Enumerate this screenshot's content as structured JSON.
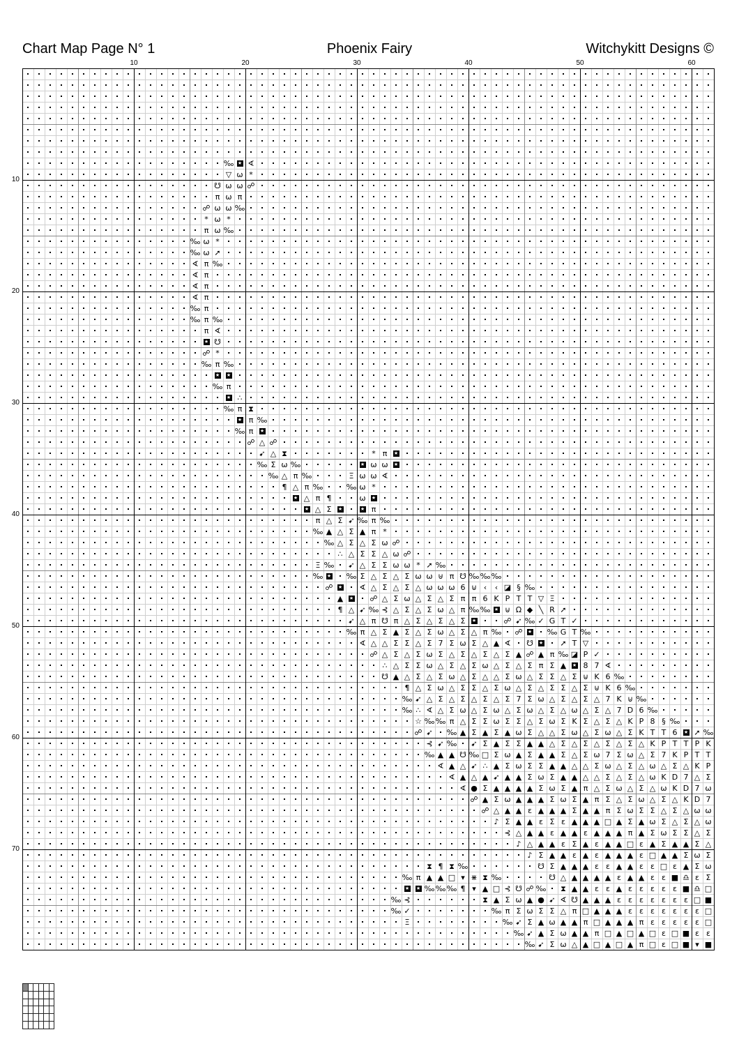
{
  "header": {
    "left": "Chart Map Page N° 1",
    "center": "Phoenix Fairy",
    "right": "Witchykitt Designs ©"
  },
  "column_numbers": [
    "10",
    "20",
    "30",
    "40",
    "50",
    "60"
  ],
  "row_numbers": [
    "10",
    "20",
    "30",
    "40",
    "50",
    "60",
    "70"
  ],
  "chart_data": {
    "type": "table",
    "columns": 62,
    "rows": 79,
    "empty_symbol": ".",
    "segments": [
      {
        "row": 9,
        "col": 19,
        "s": "‰⧈∢"
      },
      {
        "row": 10,
        "col": 19,
        "s": "▽ω*"
      },
      {
        "row": 11,
        "col": 18,
        "s": "☋ωω☍"
      },
      {
        "row": 12,
        "col": 18,
        "s": "πωπ"
      },
      {
        "row": 13,
        "col": 17,
        "s": "☍ωω‰"
      },
      {
        "row": 14,
        "col": 17,
        "s": "*ω*"
      },
      {
        "row": 15,
        "col": 17,
        "s": "πω‰"
      },
      {
        "row": 16,
        "col": 16,
        "s": "‰ω*"
      },
      {
        "row": 17,
        "col": 16,
        "s": "‰ω➚"
      },
      {
        "row": 18,
        "col": 16,
        "s": "∢π‰"
      },
      {
        "row": 19,
        "col": 16,
        "s": "∢π"
      },
      {
        "row": 20,
        "col": 16,
        "s": "∢π"
      },
      {
        "row": 21,
        "col": 16,
        "s": "∢π"
      },
      {
        "row": 22,
        "col": 16,
        "s": "‰π"
      },
      {
        "row": 23,
        "col": 16,
        "s": "‰π‰"
      },
      {
        "row": 24,
        "col": 17,
        "s": "π∢"
      },
      {
        "row": 25,
        "col": 17,
        "s": "⧈☋"
      },
      {
        "row": 26,
        "col": 17,
        "s": "☍*"
      },
      {
        "row": 27,
        "col": 17,
        "s": "‰π‰"
      },
      {
        "row": 28,
        "col": 18,
        "s": "⧈⧈"
      },
      {
        "row": 29,
        "col": 18,
        "s": "‰π"
      },
      {
        "row": 30,
        "col": 19,
        "s": "⧈∴"
      },
      {
        "row": 31,
        "col": 19,
        "s": "‰π⧗"
      },
      {
        "row": 32,
        "col": 20,
        "s": "⧈π‰"
      },
      {
        "row": 33,
        "col": 20,
        "s": "‰π⧈"
      },
      {
        "row": 34,
        "col": 21,
        "s": "☍△☍"
      },
      {
        "row": 35,
        "col": 22,
        "s": "➹△⧗"
      },
      {
        "row": 35,
        "col": 32,
        "s": "*π⧈"
      },
      {
        "row": 36,
        "col": 22,
        "s": "‰Σω‰"
      },
      {
        "row": 36,
        "col": 31,
        "s": "⧈ωω⧈"
      },
      {
        "row": 37,
        "col": 23,
        "s": "‰△π‰"
      },
      {
        "row": 37,
        "col": 30,
        "s": "Ξωω∢"
      },
      {
        "row": 38,
        "col": 24,
        "s": "¶△π‰"
      },
      {
        "row": 38,
        "col": 30,
        "s": "‰ω*"
      },
      {
        "row": 39,
        "col": 25,
        "s": "⧈△π¶"
      },
      {
        "row": 39,
        "col": 31,
        "s": "ω⧈"
      },
      {
        "row": 40,
        "col": 26,
        "s": "⧈△Σ⧈.⧈π"
      },
      {
        "row": 41,
        "col": 27,
        "s": "π△Σ➹‰π‰"
      },
      {
        "row": 42,
        "col": 27,
        "s": "‰▲△Σ▲π*"
      },
      {
        "row": 43,
        "col": 28,
        "s": "‰△Σ△Σω☍"
      },
      {
        "row": 44,
        "col": 29,
        "s": "∴△ΣΣ△ω☍"
      },
      {
        "row": 45,
        "col": 27,
        "s": "Ξ‰.➹△ΣΣωω*➚‰"
      },
      {
        "row": 46,
        "col": 27,
        "s": "‰⧈.‰Σ△Σ△Σωω⊎π☋‰‰‰"
      },
      {
        "row": 47,
        "col": 28,
        "s": "☍⧈.∢△Σ△Σ△ωωω6⊍‹‹◪§‰"
      },
      {
        "row": 48,
        "col": 29,
        "s": "▲⧈.☍△Σω△Σ△Σππ6KPTT▽Ξ"
      },
      {
        "row": 49,
        "col": 29,
        "s": "¶△➹‰⊰△Σ△Σω△π‰‰⧈⊍Ω◆╲R➚"
      },
      {
        "row": 50,
        "col": 30,
        "s": "➹△π☋π△Σ△Σ△Σ⧈..☍➹‰✓GT✓"
      },
      {
        "row": 51,
        "col": 30,
        "s": "‰π△Σ▲Σ△Σω△Σ△π‰.☍⧈.‰GT‰"
      },
      {
        "row": 52,
        "col": 31,
        "s": "∢△△ΣΣ△Σ7ΣωΣ△▲∢.☋⧈.➚T▽"
      },
      {
        "row": 53,
        "col": 32,
        "s": "☍△Σ△ΣωΣ△Σ△Σ△Σ▲☍▲π‰◪P✓"
      },
      {
        "row": 54,
        "col": 33,
        "s": "∴△ΣΣω△Σ△Σω△Σ△ΣπΣ▲⧈87∢"
      },
      {
        "row": 55,
        "col": 33,
        "s": "☋▲△Σ△Σω△Σ△△Σω△ΣΣ△Σ⊍K6‰"
      },
      {
        "row": 56,
        "col": 35,
        "s": "¶△Σω△ΣΣ△Σω△Σ△ΣΣ△Σ⊍K6‰"
      },
      {
        "row": 57,
        "col": 35,
        "s": "‰➹△Σ△Σ△Σ△Σ7Σω△Σ△Σ△7K⊍‰"
      },
      {
        "row": 58,
        "col": 35,
        "s": "‰∴∢△Σω△Σω△Σω△Σ△ω△Σ△7D6‰"
      },
      {
        "row": 59,
        "col": 36,
        "s": "☆‰‰π△ΣΣωΣΣ△ΣωΣKΣ△Σ△KP8§‰"
      },
      {
        "row": 60,
        "col": 36,
        "s": "☍➹.‰▲Σ▲Σ▲ωΣ△△Σω△Σω△ΣKTT6⧈➚‰"
      },
      {
        "row": 61,
        "col": 37,
        "s": "⊰➹‰.➹Σ▲ΣΣ▲▲△Σ△Σ△Σ△Σ△KPTTPK"
      },
      {
        "row": 62,
        "col": 37,
        "s": "‰▲▲☋‰□Σω▲Σ▲▲Σ△Σω7Σω△Σ7KPTT"
      },
      {
        "row": 63,
        "col": 38,
        "s": "∢▲△➹∴▲ΣωΣΣ▲▲△△Σω△Σ△ω△Σ△KP"
      },
      {
        "row": 64,
        "col": 39,
        "s": "∢▲△▲➹▲▲ΣωΣ▲▲△△Σ△Σ△ωKD7△Σ"
      },
      {
        "row": 65,
        "col": 40,
        "s": "∢●Σ▲▲▲▲ΣωΣ▲π△Σω△Σ△ωKD7ω"
      },
      {
        "row": 66,
        "col": 41,
        "s": "☍▲Σω▲▲▲ΣωΣ▲πΣ△Σω△Σ△KD7"
      },
      {
        "row": 67,
        "col": 42,
        "s": "☍△▲▲ε▲▲▲Σ▲▲πΣωΣΣ△Σ△ωω"
      },
      {
        "row": 68,
        "col": 43,
        "s": "♪Σ▲▲εΣε▲▲▲□▲Σ▲ωΣ△Σ△ω"
      },
      {
        "row": 69,
        "col": 44,
        "s": "⊰△▲▲ε▲▲ε▲▲▲π▲ΣωΣΣ△Σ"
      },
      {
        "row": 70,
        "col": 45,
        "s": "♪△▲▲εΣ▲ε▲▲□ε▲Σ▲▲Σ△"
      },
      {
        "row": 71,
        "col": 46,
        "s": "♪Σ▲▲ε▲ε▲▲▲ε□▲▲ΣωΣ"
      },
      {
        "row": 72,
        "col": 37,
        "s": "⧗¶⧗‰"
      },
      {
        "row": 72,
        "col": 47,
        "s": "☋Σ▲▲▲εε▲▲εε□ε▲Σω"
      },
      {
        "row": 73,
        "col": 35,
        "s": "‰π▲▲□▾⋇⧗‰"
      },
      {
        "row": 73,
        "col": 48,
        "s": "☋△▲▲▲▲ε▲▲εε■♎εΣ"
      },
      {
        "row": 74,
        "col": 35,
        "s": "⧈⧈‰‰‰¶▾▲□⊰☋☍‰.⧗▲▲εε▲εεεεε■♎□"
      },
      {
        "row": 75,
        "col": 34,
        "s": "‰⊰"
      },
      {
        "row": 75,
        "col": 42,
        "s": "⧗▲Σω▲●➹∢☋▲▲▲εεεεεεε□■"
      },
      {
        "row": 76,
        "col": 34,
        "s": "‰✓"
      },
      {
        "row": 76,
        "col": 43,
        "s": "‰πΣωΣΣ△π□▲▲▲εεεεεεε□"
      },
      {
        "row": 77,
        "col": 35,
        "s": "Ξ"
      },
      {
        "row": 77,
        "col": 44,
        "s": "‰➹Σ▲ω▲▲π□▲▲▲πεεεεε□"
      },
      {
        "row": 78,
        "col": 45,
        "s": "‰➹▲Σω▲▲π□▲□▲□ε□■εε"
      },
      {
        "row": 79,
        "col": 46,
        "s": "‰➹Σω△▲□▲□▲π□ε□■▾■"
      }
    ]
  },
  "page_key": {
    "columns": 6,
    "rows": 6,
    "highlighted_cell": [
      1,
      1
    ]
  }
}
